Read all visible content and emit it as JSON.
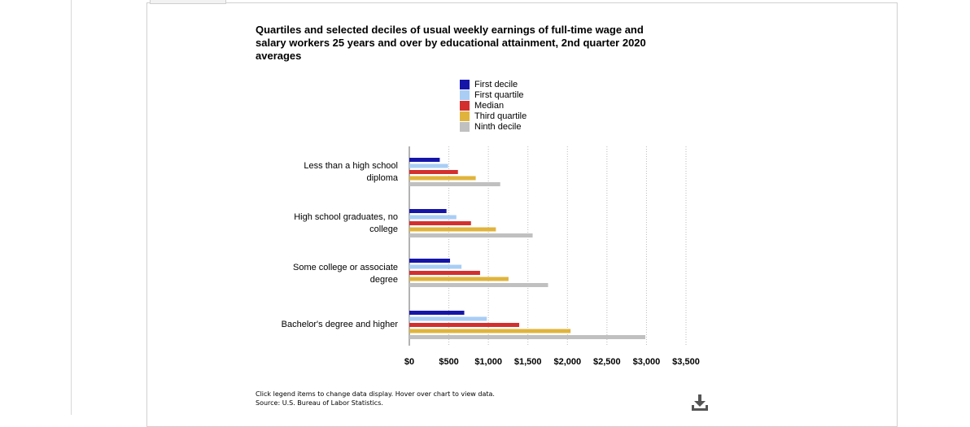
{
  "chart_data": {
    "type": "bar",
    "orientation": "horizontal",
    "title": "Quartiles and selected deciles of usual weekly earnings of full-time wage and salary workers 25 years and over by educational attainment, 2nd quarter 2020 averages",
    "categories": [
      "Less than a high school diploma",
      "High school graduates, no college",
      "Some college or associate degree",
      "Bachelor's degree and higher"
    ],
    "series": [
      {
        "name": "First decile",
        "color": "#1515a8",
        "values": [
          385,
          470,
          515,
          695
        ]
      },
      {
        "name": "First quartile",
        "color": "#a9cdf5",
        "values": [
          490,
          595,
          660,
          980
        ]
      },
      {
        "name": "Median",
        "color": "#d32f2f",
        "values": [
          615,
          780,
          895,
          1390
        ]
      },
      {
        "name": "Third quartile",
        "color": "#e0b43c",
        "values": [
          840,
          1095,
          1255,
          2040
        ]
      },
      {
        "name": "Ninth decile",
        "color": "#c0c0c0",
        "values": [
          1150,
          1560,
          1755,
          2985
        ]
      }
    ],
    "xlim": [
      0,
      3500
    ],
    "x_ticks": [
      "$0",
      "$500",
      "$1,000",
      "$1,500",
      "$2,000",
      "$2,500",
      "$3,000",
      "$3,500"
    ],
    "grid": true,
    "legend_position": "top"
  },
  "chart_labels": {
    "categories_line1": [
      "Less than a high school",
      "High school graduates, no",
      "Some college or associate",
      "Bachelor's degree and higher"
    ],
    "categories_line2": [
      "diploma",
      "college",
      "degree",
      ""
    ],
    "title_lines": [
      "Quartiles and selected deciles of usual weekly earnings of full-time wage and",
      "salary workers 25 years and over by educational attainment, 2nd quarter 2020",
      "averages"
    ]
  },
  "footer": {
    "note": "Click legend items to change data display. Hover over chart to view data.",
    "source": "Source: U.S. Bureau of Labor Statistics."
  },
  "icons": {
    "download": "download-icon"
  }
}
